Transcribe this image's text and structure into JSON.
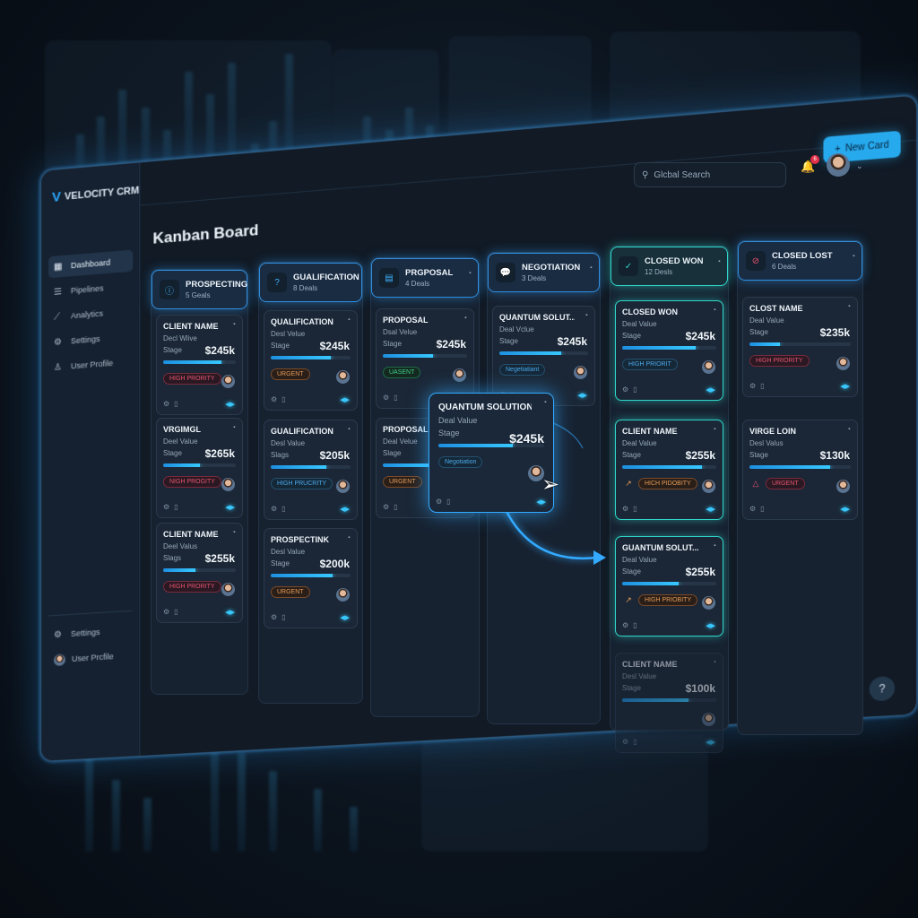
{
  "app": {
    "name": "VELOCITY CRM"
  },
  "sidebar": {
    "items": [
      {
        "label": "Dashboard",
        "icon": "grid-icon",
        "active": true
      },
      {
        "label": "Pipelines",
        "icon": "list-icon"
      },
      {
        "label": "Analytics",
        "icon": "chart-icon"
      },
      {
        "label": "Settings",
        "icon": "gear-icon"
      },
      {
        "label": "User Profile",
        "icon": "user-icon"
      }
    ],
    "bottom": [
      {
        "label": "Settings",
        "icon": "gear-icon"
      },
      {
        "label": "User Prcfile",
        "icon": "avatar"
      }
    ]
  },
  "header": {
    "search_placeholder": "Glcbal Search",
    "notifications": "6",
    "new_card_label": "New Card"
  },
  "board": {
    "title": "Kanban Board",
    "columns": [
      {
        "name": "PROSPECTING",
        "count": "5 Geals",
        "icon": "info-icon",
        "cards": [
          {
            "name": "CLIENT NAME",
            "l1": "Decl Wlive",
            "l2": "Stage",
            "value": "$245k",
            "progress": 0.8,
            "tag": "HIGH PRORITY",
            "tag_color": "red"
          },
          {
            "name": "VRGIMGL",
            "l1": "Deel Value",
            "l2": "Stage",
            "value": "$265k",
            "progress": 0.5,
            "tag": "NIGH PROGITY",
            "tag_color": "red"
          },
          {
            "name": "CLIENT NAME",
            "l1": "Deel Valus",
            "l2": "Slags",
            "value": "$255k",
            "progress": 0.45,
            "tag": "HIGH PRORITY",
            "tag_color": "red"
          }
        ]
      },
      {
        "name": "GUALIFICATION",
        "count": "8 Deals",
        "icon": "question-icon",
        "cards": [
          {
            "name": "QUALIFICATION",
            "l1": "Desl Velue",
            "l2": "Stage",
            "value": "$245k",
            "progress": 0.75,
            "tag": "URGENT",
            "tag_color": "orange"
          },
          {
            "name": "GUALIFICATION",
            "l1": "Desl Value",
            "l2": "Slags",
            "value": "$205k",
            "progress": 0.7,
            "tag": "HIGH PRUCRITY",
            "tag_color": "blue"
          },
          {
            "name": "PROSPECTINK",
            "l1": "Desl Value",
            "l2": "Stage",
            "value": "$200k",
            "progress": 0.78,
            "tag": "URGENT",
            "tag_color": "orange"
          }
        ]
      },
      {
        "name": "PRGPOSAL",
        "count": "4 Deals",
        "icon": "document-icon",
        "cards": [
          {
            "name": "PROPOSAL",
            "l1": "Dsal Velue",
            "l2": "Stage",
            "value": "$245k",
            "progress": 0.6,
            "tag": "UASENT",
            "tag_color": "green"
          },
          {
            "name": "PROPOSAL T",
            "l1": "Deal Velue",
            "l2": "Slage",
            "value": "",
            "progress": 0.6,
            "tag": "URGENT",
            "tag_color": "orange"
          }
        ]
      },
      {
        "name": "NEGOTIATION",
        "count": "3 Deals",
        "icon": "chat-icon",
        "cards": [
          {
            "name": "QUANTUM SOLUT...",
            "l1": "Deal Vclue",
            "l2": "Stage",
            "value": "$245k",
            "progress": 0.7,
            "tag": "Negetiatiant",
            "tag_color": "blue"
          }
        ]
      },
      {
        "name": "CLOSED WON",
        "count": "12 Desls",
        "icon": "check-icon",
        "won": true,
        "cards": [
          {
            "name": "CLOSED WON",
            "l1": "Deal Value",
            "l2": "Stage",
            "value": "$245k",
            "progress": 0.78,
            "tag": "HIGH PRIORIT",
            "tag_color": "blue",
            "glow": true
          },
          {
            "name": "CLIENT NAME",
            "l1": "Deal Value",
            "l2": "Stage",
            "value": "$255k",
            "progress": 0.85,
            "tag": "HICH PIDOBITY",
            "tag_color": "orange",
            "tag_icon": "trend-up-icon",
            "glow": true
          },
          {
            "name": "GUANTUM SOLUT...",
            "l1": "Deal Value",
            "l2": "Stage",
            "value": "$255k",
            "progress": 0.6,
            "tag": "HIGH PRIOBITY",
            "tag_color": "orange",
            "tag_icon": "trend-up-icon",
            "glow": true
          },
          {
            "name": "CLIENT NAME",
            "l1": "Desl Value",
            "l2": "Stage",
            "value": "$100k",
            "progress": 0.7,
            "tag": "",
            "tag_color": "orange",
            "faded": true
          }
        ]
      },
      {
        "name": "CLOSED LOST",
        "count": "6 Deals",
        "icon": "lost-icon",
        "cards": [
          {
            "name": "CLOST NAME",
            "l1": "Deal Value",
            "l2": "Stage",
            "value": "$235k",
            "progress": 0.3,
            "tag": "HIGH PRIORITY",
            "tag_color": "red"
          },
          {
            "name": "VIRGE LOIN",
            "l1": "Desl Valus",
            "l2": "Stage",
            "value": "$130k",
            "progress": 0.8,
            "tag": "URGENT",
            "tag_color": "red",
            "tag_icon": "warning-icon"
          }
        ]
      }
    ],
    "dragged_card": {
      "name": "QUANTUM SOLUTIONS",
      "l1": "Deal Value",
      "l2": "Stage",
      "value": "$245k",
      "progress": 0.7,
      "tag": "Negotiation",
      "tag_color": "blue"
    }
  },
  "help": "?",
  "colors": {
    "accent": "#27a9ee",
    "won": "#2fd6c8",
    "background": "#111a25"
  }
}
